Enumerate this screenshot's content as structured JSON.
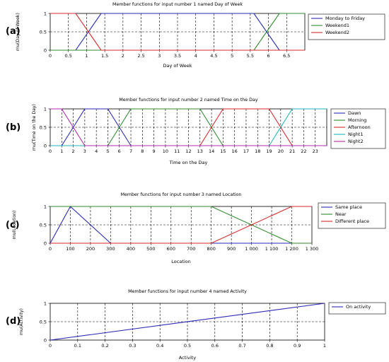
{
  "chart_data": [
    {
      "panel_label": "(a)",
      "type": "line",
      "title": "Member functions for input number 1 named Day of Week",
      "xlabel": "Day of Week",
      "ylabel": "mu(Day of Week)",
      "xlim": [
        0,
        7
      ],
      "ylim": [
        0,
        1
      ],
      "x_ticks": [
        0,
        0.5,
        1,
        1.5,
        2,
        2.5,
        3,
        3.5,
        4,
        4.5,
        5,
        5.5,
        6,
        6.5
      ],
      "x_tick_labels": [
        "0",
        "0.5",
        "1",
        "1.5",
        "2",
        "2.5",
        "3",
        "3.5",
        "4",
        "4.5",
        "5",
        "5.5",
        "6",
        "6.5"
      ],
      "y_ticks": [
        0,
        0.5,
        1
      ],
      "y_tick_labels": [
        "0",
        "0.5",
        "1"
      ],
      "grid": true,
      "legend_position": "right",
      "series": [
        {
          "name": "Monday to Friday",
          "color": "#2a2ab5",
          "points": [
            [
              0,
              0
            ],
            [
              0.7,
              0
            ],
            [
              1.4,
              1
            ],
            [
              5.6,
              1
            ],
            [
              6.3,
              0
            ],
            [
              7,
              0
            ]
          ]
        },
        {
          "name": "Weekend1",
          "color": "#2e8b2e",
          "points": [
            [
              0,
              0
            ],
            [
              5.6,
              0
            ],
            [
              6.3,
              1
            ],
            [
              7,
              1
            ]
          ]
        },
        {
          "name": "Weekend2",
          "color": "#d42a2a",
          "points": [
            [
              0,
              1
            ],
            [
              0.7,
              1
            ],
            [
              1.4,
              0
            ],
            [
              7,
              0
            ]
          ]
        }
      ]
    },
    {
      "panel_label": "(b)",
      "type": "line",
      "title": "Member functions for input number 2 named Time on the Day",
      "xlabel": "Time on the Day",
      "ylabel": "mu(Time on the Day)",
      "xlim": [
        0,
        24
      ],
      "ylim": [
        0,
        1
      ],
      "x_ticks": [
        0,
        1,
        2,
        3,
        4,
        5,
        6,
        7,
        8,
        9,
        10,
        11,
        12,
        13,
        14,
        15,
        16,
        17,
        18,
        19,
        20,
        21,
        22,
        23
      ],
      "x_tick_labels": [
        "0",
        "1",
        "2",
        "3",
        "4",
        "5",
        "6",
        "7",
        "8",
        "9",
        "10",
        "11",
        "12",
        "13",
        "14",
        "15",
        "16",
        "17",
        "18",
        "19",
        "20",
        "21",
        "22",
        "23"
      ],
      "y_ticks": [
        0,
        0.5,
        1
      ],
      "y_tick_labels": [
        "0",
        "0.5",
        "1"
      ],
      "grid": true,
      "legend_position": "right",
      "series": [
        {
          "name": "Dawn",
          "color": "#2a2ab5",
          "points": [
            [
              0,
              0
            ],
            [
              1,
              0
            ],
            [
              3,
              1
            ],
            [
              5,
              1
            ],
            [
              7,
              0
            ],
            [
              24,
              0
            ]
          ]
        },
        {
          "name": "Morning",
          "color": "#2e8b2e",
          "points": [
            [
              0,
              0
            ],
            [
              5,
              0
            ],
            [
              7,
              1
            ],
            [
              13,
              1
            ],
            [
              15,
              0
            ],
            [
              24,
              0
            ]
          ]
        },
        {
          "name": "Afternoon",
          "color": "#d42a2a",
          "points": [
            [
              0,
              0
            ],
            [
              13,
              0
            ],
            [
              15,
              1
            ],
            [
              19,
              1
            ],
            [
              21,
              0
            ],
            [
              24,
              0
            ]
          ]
        },
        {
          "name": "Night1",
          "color": "#1fb5b5",
          "points": [
            [
              0,
              0
            ],
            [
              19,
              0
            ],
            [
              21,
              1
            ],
            [
              24,
              1
            ]
          ]
        },
        {
          "name": "Night2",
          "color": "#b02cb0",
          "points": [
            [
              0,
              1
            ],
            [
              1,
              1
            ],
            [
              3,
              0
            ],
            [
              24,
              0
            ]
          ]
        }
      ]
    },
    {
      "panel_label": "(c)",
      "type": "line",
      "title": "Member functions for input number 3 named Location",
      "xlabel": "Location",
      "ylabel": "mu(Location)",
      "xlim": [
        0,
        1300
      ],
      "ylim": [
        0,
        1
      ],
      "x_ticks": [
        0,
        100,
        200,
        300,
        400,
        500,
        600,
        700,
        800,
        900,
        1000,
        1100,
        1200,
        1300
      ],
      "x_tick_labels": [
        "0",
        "100",
        "200",
        "300",
        "400",
        "500",
        "600",
        "700",
        "800",
        "900",
        "1 000",
        "1 100",
        "1 200",
        "1 300"
      ],
      "y_ticks": [
        0,
        0.5,
        1
      ],
      "y_tick_labels": [
        "0",
        "0.5",
        "1"
      ],
      "grid": true,
      "legend_position": "right",
      "series": [
        {
          "name": "Same place",
          "color": "#2a2ab5",
          "points": [
            [
              0,
              0
            ],
            [
              100,
              1
            ],
            [
              300,
              0
            ],
            [
              1300,
              0
            ]
          ]
        },
        {
          "name": "Near",
          "color": "#2e8b2e",
          "points": [
            [
              0,
              1
            ],
            [
              800,
              1
            ],
            [
              1200,
              0
            ],
            [
              1300,
              0
            ]
          ]
        },
        {
          "name": "Different place",
          "color": "#d42a2a",
          "points": [
            [
              0,
              0
            ],
            [
              800,
              0
            ],
            [
              1200,
              1
            ],
            [
              1300,
              1
            ]
          ]
        }
      ]
    },
    {
      "panel_label": "(d)",
      "type": "line",
      "title": "Member functions for input number 4 named Activity",
      "xlabel": "Activity",
      "ylabel": "mu(Activity)",
      "xlim": [
        0,
        1
      ],
      "ylim": [
        0,
        1
      ],
      "x_ticks": [
        0,
        0.1,
        0.2,
        0.3,
        0.4,
        0.5,
        0.6,
        0.7,
        0.8,
        0.9,
        1
      ],
      "x_tick_labels": [
        "0",
        "0.1",
        "0.2",
        "0.3",
        "0.4",
        "0.5",
        "0.6",
        "0.7",
        "0.8",
        "0.9",
        "1"
      ],
      "y_ticks": [
        0,
        0.5,
        1
      ],
      "y_tick_labels": [
        "0",
        "0.5",
        "1"
      ],
      "grid": true,
      "legend_position": "right",
      "series": [
        {
          "name": "On activity",
          "color": "#2a2ab5",
          "points": [
            [
              0,
              0
            ],
            [
              1,
              1
            ]
          ]
        }
      ]
    }
  ]
}
